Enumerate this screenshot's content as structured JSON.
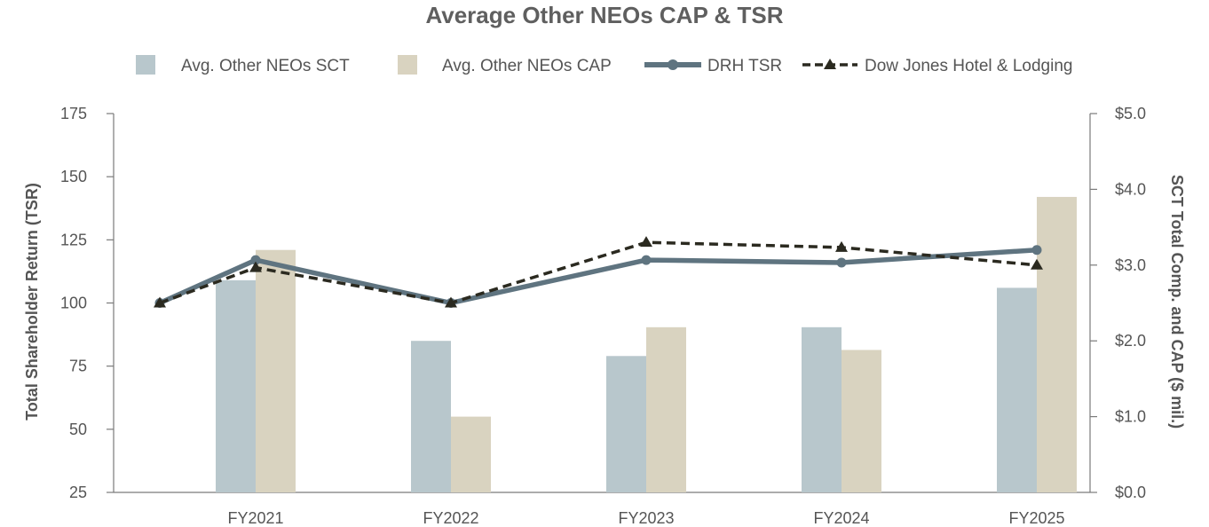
{
  "chart_data": {
    "type": "bar",
    "title": "Average Other NEOs CAP & TSR",
    "categories": [
      "FY2021",
      "FY2022",
      "FY2023",
      "FY2024",
      "FY2025"
    ],
    "ylabel_left": "Total Shareholder Return (TSR)",
    "ylabel_right": "SCT Total Comp. and CAP ($ mil.)",
    "ylim_left": [
      25,
      175
    ],
    "ylim_right": [
      0,
      5
    ],
    "yticks_left": [
      "25",
      "50",
      "75",
      "100",
      "125",
      "150",
      "175"
    ],
    "yticks_right": [
      "$0.0",
      "$1.0",
      "$2.0",
      "$3.0",
      "$4.0",
      "$5.0"
    ],
    "grid": false,
    "legend_position": "top",
    "tsr_base": 100,
    "series": [
      {
        "name": "Avg. Other NEOs SCT",
        "kind": "bar",
        "axis": "right",
        "color": "#b8c7cc",
        "values": [
          2.8,
          2.0,
          1.8,
          2.18,
          2.7
        ]
      },
      {
        "name": "Avg. Other NEOs CAP",
        "kind": "bar",
        "axis": "right",
        "color": "#d9d3c0",
        "values": [
          3.2,
          1.0,
          2.18,
          1.88,
          3.9
        ]
      },
      {
        "name": "DRH TSR",
        "kind": "line",
        "axis": "left",
        "color": "#5f7480",
        "marker": "circle",
        "values": [
          117,
          100,
          117,
          116,
          121
        ]
      },
      {
        "name": "Dow Jones Hotel & Lodging",
        "kind": "line",
        "axis": "left",
        "color": "#2b2a20",
        "marker": "triangle",
        "dashed": true,
        "values": [
          114,
          100,
          124,
          122,
          115
        ]
      }
    ]
  }
}
